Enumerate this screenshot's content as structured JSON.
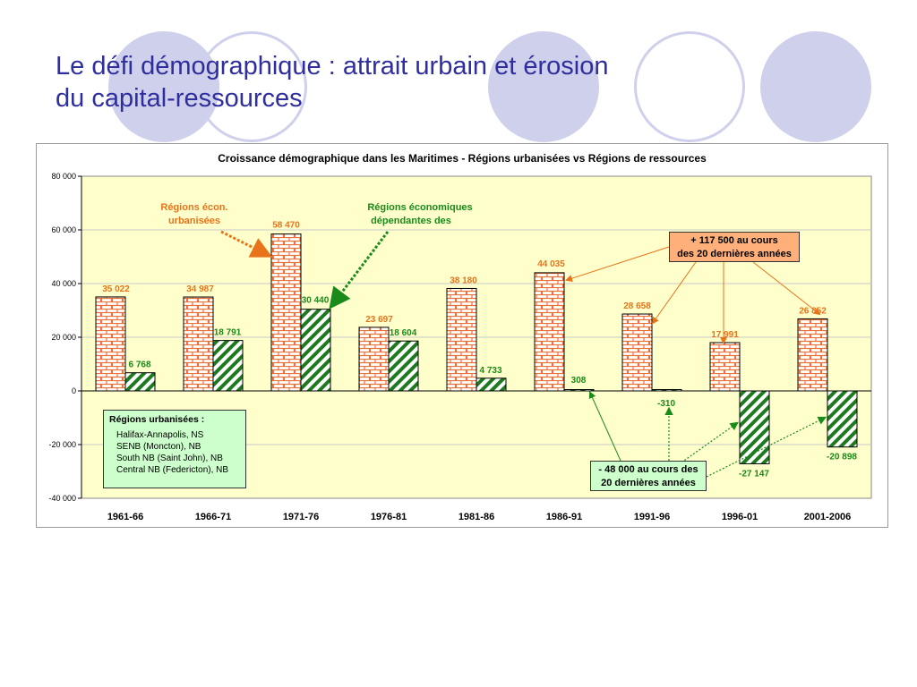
{
  "slide": {
    "title_line1": "Le défi démographique : attrait urbain et érosion",
    "title_line2": "du capital-ressources"
  },
  "colors": {
    "title": "#2e2e9e",
    "decor_circle": "#cfd0ec",
    "plot_background": "#ffffcc",
    "urban_bar": "#e8733a",
    "resource_bar": "#1e7a1e",
    "urban_text": "#e8731a",
    "resource_text": "#1a8a1a",
    "callout_positive": "#ffb07a",
    "callout_negative": "#ccffcc"
  },
  "chart_data": {
    "type": "bar",
    "title": "Croissance démographique dans les Maritimes - Régions urbanisées vs Régions de ressources",
    "categories": [
      "1961-66",
      "1966-71",
      "1971-76",
      "1976-81",
      "1981-86",
      "1986-91",
      "1991-96",
      "1996-01",
      "2001-2006"
    ],
    "series": [
      {
        "name": "Régions écon. urbanisées",
        "values": [
          35022,
          34987,
          58470,
          23697,
          38180,
          44035,
          28658,
          17991,
          26852
        ],
        "value_labels": [
          "35 022",
          "34 987",
          "58 470",
          "23 697",
          "38 180",
          "44 035",
          "28 658",
          "17 991",
          "26 852"
        ],
        "pattern": "brick"
      },
      {
        "name": "Régions économiques dépendantes des",
        "values": [
          6768,
          18791,
          30440,
          18604,
          4733,
          308,
          -310,
          -27147,
          -20898
        ],
        "value_labels": [
          "6 768",
          "18 791",
          "30 440",
          "18 604",
          "4 733",
          "308",
          "-310",
          "-27 147",
          "-20 898"
        ],
        "pattern": "diagonal-stripes"
      }
    ],
    "ylim": [
      -40000,
      80000
    ],
    "yticks": [
      -40000,
      -20000,
      0,
      20000,
      40000,
      60000,
      80000
    ],
    "ytick_labels": [
      "-40 000",
      "-20 000",
      "0",
      "20 000",
      "40 000",
      "60 000",
      "80 000"
    ],
    "grid": true,
    "annotations": {
      "urban_series_label_line1": "Régions écon.",
      "urban_series_label_line2": "urbanisées",
      "resource_series_label_line1": "Régions économiques",
      "resource_series_label_line2": "dépendantes des",
      "positive_callout_line1": "+ 117 500 au cours",
      "positive_callout_line2": "des 20 dernières années",
      "negative_callout_line1": "- 48 000 au cours des",
      "negative_callout_line2": "20 dernières années"
    },
    "legend_box": {
      "heading": "Régions urbanisées :",
      "items": [
        "Halifax-Annapolis, NS",
        "SENB (Moncton), NB",
        "South NB (Saint John), NB",
        "Central NB (Federicton), NB"
      ]
    }
  }
}
